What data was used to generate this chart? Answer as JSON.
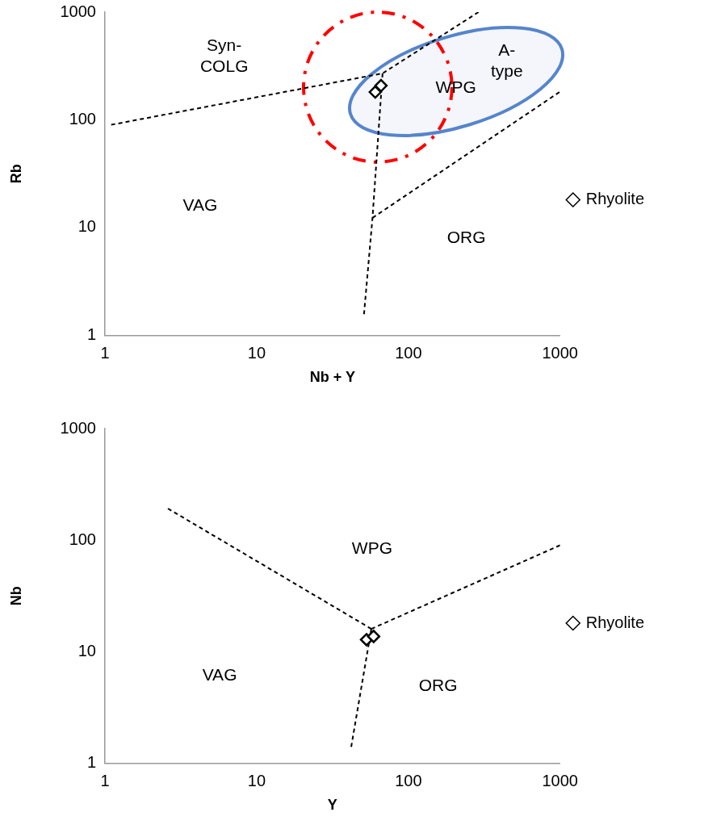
{
  "chart_data": [
    {
      "type": "scatter",
      "xlabel": "Nb + Y",
      "ylabel": "Rb",
      "log": "xy",
      "xlim": [
        1,
        1000
      ],
      "ylim": [
        1,
        1000
      ],
      "xticks": [
        1,
        10,
        100,
        1000
      ],
      "yticks": [
        1,
        10,
        100,
        1000
      ],
      "legend": "right",
      "series": [
        {
          "name": "Rhyolite",
          "type": "scatter",
          "marker": "diamond",
          "color": "#000000",
          "x": [
            60.5,
            66
          ],
          "values": [
            181,
            208
          ]
        },
        {
          "type": "line",
          "marker": "none",
          "line_style": "dashed",
          "color": "#000000",
          "x": [
            1.1,
            67.6,
            290
          ],
          "values": [
            90,
            270,
            1000
          ]
        },
        {
          "type": "line",
          "marker": "none",
          "line_style": "dashed",
          "color": "#000000",
          "x": [
            67.6,
            58,
            51
          ],
          "values": [
            270,
            12.3,
            1.57
          ]
        },
        {
          "type": "line",
          "marker": "none",
          "line_style": "dashed",
          "color": "#000000",
          "x": [
            58,
            990
          ],
          "values": [
            12.3,
            181
          ]
        }
      ],
      "annotations": [
        "Syn-COLG",
        "VAG",
        "WPG",
        "ORG",
        "A-type"
      ]
    },
    {
      "type": "scatter",
      "xlabel": "Y",
      "ylabel": "Nb",
      "log": "xy",
      "xlim": [
        1,
        1000
      ],
      "ylim": [
        1,
        1000
      ],
      "xticks": [
        1,
        10,
        100,
        1000
      ],
      "yticks": [
        1,
        10,
        100,
        1000
      ],
      "legend": "right",
      "series": [
        {
          "name": "Rhyolite",
          "type": "scatter",
          "marker": "diamond",
          "color": "#000000",
          "x": [
            53,
            59
          ],
          "values": [
            12.8,
            13.7
          ]
        },
        {
          "type": "line",
          "marker": "none",
          "line_style": "dashed",
          "color": "#000000",
          "x": [
            2.6,
            57
          ],
          "values": [
            192,
            16
          ]
        },
        {
          "type": "line",
          "marker": "none",
          "line_style": "dashed",
          "color": "#000000",
          "x": [
            57,
            1000
          ],
          "values": [
            16,
            90
          ]
        },
        {
          "type": "line",
          "marker": "none",
          "line_style": "dashed",
          "color": "#000000",
          "x": [
            57,
            42
          ],
          "values": [
            16,
            1.4
          ]
        }
      ],
      "annotations": [
        "WPG",
        "VAG",
        "ORG"
      ]
    }
  ]
}
